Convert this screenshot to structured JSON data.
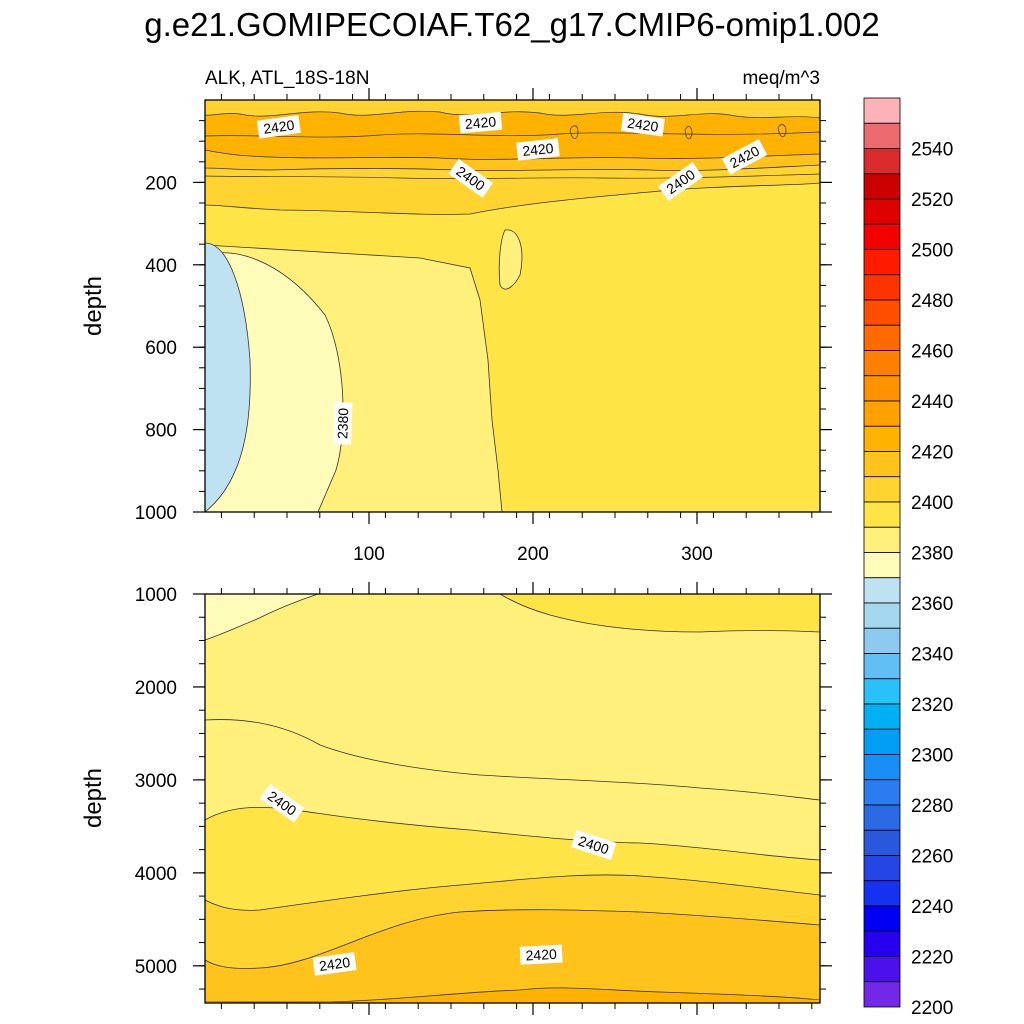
{
  "figure": {
    "title": "g.e21.GOMIPECOIAF.T62_g17.CMIP6-omip1.002",
    "variable_label": "ALK, ATL_18S-18N",
    "units_label": "meq/m^3"
  },
  "chart_data": [
    {
      "type": "contour",
      "panel": "upper",
      "xlabel": "",
      "ylabel": "depth",
      "xlim": [
        0,
        375
      ],
      "ylim": [
        0,
        1000
      ],
      "y_inverted": true,
      "xticks": [
        100,
        200,
        300
      ],
      "yticks": [
        200,
        400,
        600,
        800,
        1000
      ],
      "contour_labels": [
        {
          "text": "2420",
          "x": 45,
          "y": 65,
          "angle": -8
        },
        {
          "text": "2420",
          "x": 168,
          "y": 55,
          "angle": -5
        },
        {
          "text": "2420",
          "x": 203,
          "y": 120,
          "angle": -6
        },
        {
          "text": "2420",
          "x": 267,
          "y": 60,
          "angle": 8
        },
        {
          "text": "2420",
          "x": 329,
          "y": 138,
          "angle": -28
        },
        {
          "text": "2400",
          "x": 162,
          "y": 190,
          "angle": 35
        },
        {
          "text": "2400",
          "x": 290,
          "y": 198,
          "angle": -35
        },
        {
          "text": "2380",
          "x": 84,
          "y": 785,
          "angle": -88
        }
      ]
    },
    {
      "type": "contour",
      "panel": "lower",
      "xlabel": "",
      "ylabel": "depth",
      "xlim": [
        0,
        375
      ],
      "ylim": [
        1000,
        5400
      ],
      "y_inverted": true,
      "xticks": [
        100,
        200,
        300
      ],
      "yticks": [
        1000,
        2000,
        3000,
        4000,
        5000
      ],
      "contour_labels": [
        {
          "text": "2400",
          "x": 47,
          "y": 3250,
          "angle": 35
        },
        {
          "text": "2400",
          "x": 237,
          "y": 3700,
          "angle": 18
        },
        {
          "text": "2420",
          "x": 79,
          "y": 4980,
          "angle": -8
        },
        {
          "text": "2420",
          "x": 205,
          "y": 4880,
          "angle": -3
        }
      ]
    }
  ],
  "colorbar": {
    "labels": [
      "2540",
      "2520",
      "2500",
      "2480",
      "2460",
      "2440",
      "2420",
      "2400",
      "2380",
      "2360",
      "2340",
      "2320",
      "2300",
      "2280",
      "2260",
      "2240",
      "2220",
      "2200"
    ],
    "colors": [
      "#fbb3b8",
      "#ec6b6f",
      "#db2a2a",
      "#cb0000",
      "#e00000",
      "#f50000",
      "#ff1a00",
      "#ff3300",
      "#ff4e00",
      "#ff6a00",
      "#ff8000",
      "#ff9200",
      "#ffa200",
      "#ffb200",
      "#ffc31c",
      "#ffd430",
      "#fee445",
      "#fef07a",
      "#fffbb8",
      "#bfe2f2",
      "#a5d8ef",
      "#8ccaf0",
      "#61bff5",
      "#28c2f8",
      "#00b0f5",
      "#009ff5",
      "#1b8ef5",
      "#2a7cf0",
      "#2a6ae5",
      "#2a58dd",
      "#2545e6",
      "#1432f0",
      "#0000f5",
      "#2800f0",
      "#4b10eb",
      "#7228e6"
    ]
  }
}
